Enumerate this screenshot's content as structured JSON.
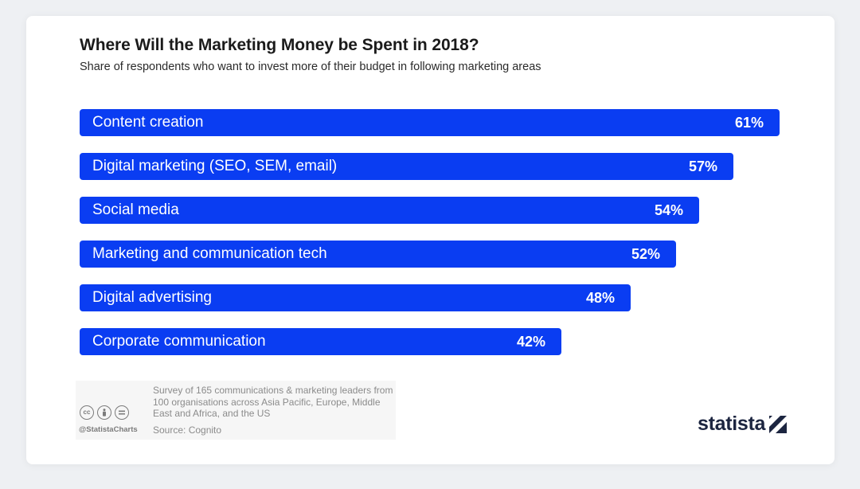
{
  "chart_data": {
    "type": "bar",
    "orientation": "horizontal",
    "title": "Where Will the Marketing Money be Spent in 2018?",
    "subtitle": "Share of respondents who want to invest more of their budget in following marketing areas",
    "categories": [
      "Content creation",
      "Digital marketing (SEO, SEM, email)",
      "Social media",
      "Marketing and communication tech",
      "Digital advertising",
      "Corporate communication"
    ],
    "values": [
      61,
      57,
      54,
      52,
      48,
      42
    ],
    "value_labels": [
      "61%",
      "57%",
      "54%",
      "52%",
      "48%",
      "42%"
    ],
    "unit": "%",
    "xlim": [
      0,
      61
    ],
    "grid": false,
    "legend": "none",
    "bar_color": "#0a3df2"
  },
  "footer": {
    "note": "Survey of 165 communications & marketing leaders from 100 organisations across Asia Pacific, Europe, Middle East and Africa, and the US",
    "source": "Source: Cognito",
    "handle": "@StatistaCharts",
    "license_icons": [
      "cc-icon",
      "attribution-icon",
      "no-derivatives-icon"
    ]
  },
  "brand": {
    "name": "statista",
    "logo_icon": "statista-logo-icon"
  }
}
